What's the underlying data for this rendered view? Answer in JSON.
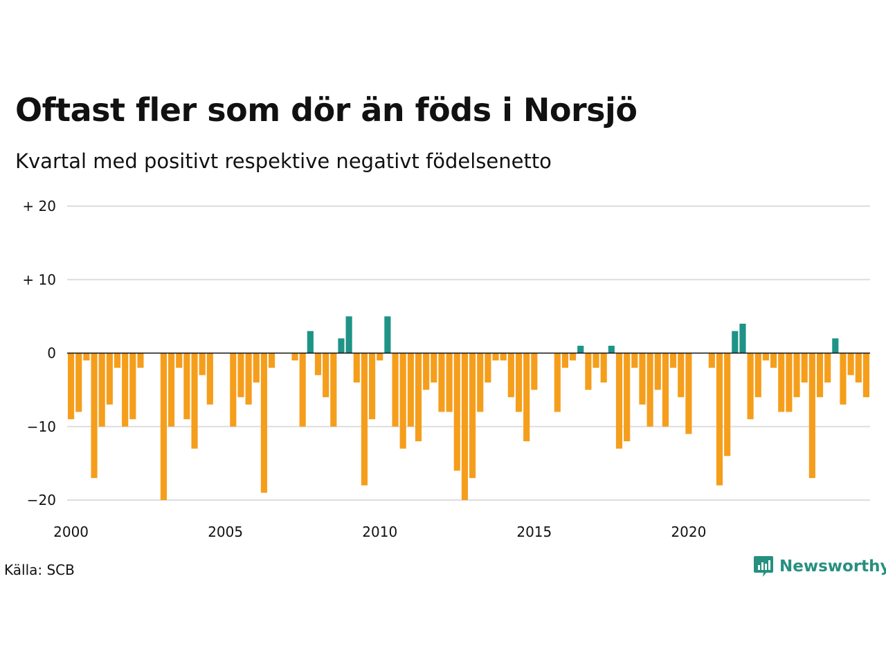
{
  "title": "Oftast fler som dör än föds i Norsjö",
  "subtitle": "Kvartal med positivt respektive negativt födelsenetto",
  "source": "Källa: SCB",
  "brand": "Newsworthy",
  "colors": {
    "positive": "#1f9386",
    "negative": "#f59e1c",
    "grid": "#dddddd",
    "brand": "#26907f"
  },
  "chart_data": {
    "type": "bar",
    "x_start": "2000 Q1",
    "x_ticks": [
      "2000",
      "2005",
      "2010",
      "2015",
      "2020"
    ],
    "y_ticks": [
      "+ 20",
      "+ 10",
      "0",
      "−10",
      "−20"
    ],
    "y_tick_values": [
      20,
      10,
      0,
      -10,
      -20
    ],
    "ylim": [
      -20,
      20
    ],
    "values": [
      -9,
      -8,
      -1,
      -17,
      -10,
      -7,
      -2,
      -10,
      -9,
      -2,
      0,
      0,
      -20,
      -10,
      -2,
      -9,
      -13,
      -3,
      -7,
      0,
      0,
      -10,
      -6,
      -7,
      -4,
      -19,
      -2,
      0,
      0,
      -1,
      -10,
      3,
      -3,
      -6,
      -10,
      2,
      5,
      -4,
      -18,
      -9,
      -1,
      5,
      -10,
      -13,
      -10,
      -12,
      -5,
      -4,
      -8,
      -8,
      -16,
      -20,
      -17,
      -8,
      -4,
      -1,
      -1,
      -6,
      -8,
      -12,
      -5,
      0,
      0,
      -8,
      -2,
      -1,
      1,
      -5,
      -2,
      -4,
      1,
      -13,
      -12,
      -2,
      -7,
      -10,
      -5,
      -10,
      -2,
      -6,
      -11,
      0,
      0,
      -2,
      -18,
      -14,
      3,
      4,
      -9,
      -6,
      -1,
      -2,
      -8,
      -8,
      -6,
      -4,
      -17,
      -6,
      -4,
      2,
      -7,
      -3,
      -4,
      -6
    ]
  }
}
